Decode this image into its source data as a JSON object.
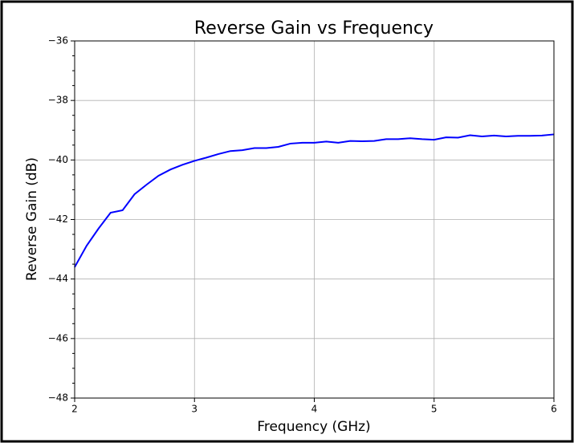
{
  "chart_data": {
    "type": "line",
    "title": "Reverse Gain vs Frequency",
    "x_label": "Frequency (GHz)",
    "y_label": "Reverse Gain (dB)",
    "x": [
      2.0,
      2.1,
      2.2,
      2.3,
      2.4,
      2.5,
      2.6,
      2.7,
      2.8,
      2.9,
      3.0,
      3.1,
      3.2,
      3.3,
      3.4,
      3.5,
      3.6,
      3.7,
      3.8,
      3.9,
      4.0,
      4.1,
      4.2,
      4.3,
      4.4,
      4.5,
      4.6,
      4.7,
      4.8,
      4.9,
      5.0,
      5.1,
      5.2,
      5.3,
      5.4,
      5.5,
      5.6,
      5.7,
      5.8,
      5.9,
      6.0
    ],
    "series": [
      {
        "color": "#0000ff",
        "values": [
          -43.6,
          -42.88,
          -42.3,
          -41.77,
          -41.69,
          -41.15,
          -40.83,
          -40.53,
          -40.32,
          -40.16,
          -40.03,
          -39.92,
          -39.8,
          -39.7,
          -39.67,
          -39.6,
          -39.6,
          -39.56,
          -39.45,
          -39.42,
          -39.42,
          -39.38,
          -39.42,
          -39.36,
          -39.37,
          -39.36,
          -39.3,
          -39.3,
          -39.27,
          -39.3,
          -39.32,
          -39.24,
          -39.25,
          -39.17,
          -39.21,
          -39.18,
          -39.21,
          -39.19,
          -39.19,
          -39.18,
          -39.14
        ]
      }
    ],
    "xlim": [
      2,
      6
    ],
    "xticks": [
      2,
      3,
      4,
      5,
      6
    ],
    "ylim": [
      -48,
      -36
    ],
    "yticks": [
      {
        "value": -48,
        "label": "−48"
      },
      {
        "value": -46,
        "label": "−46"
      },
      {
        "value": -44,
        "label": "−44"
      },
      {
        "value": -42,
        "label": "−42"
      },
      {
        "value": -40,
        "label": "−40"
      },
      {
        "value": -38,
        "label": "−38"
      },
      {
        "value": -36,
        "label": "−36"
      }
    ],
    "yticks_minor": [
      -47.5,
      -47,
      -46.5,
      -45.5,
      -45,
      -44.5,
      -43.5,
      -43,
      -42.5,
      -41.5,
      -41,
      -40.5,
      -39.5,
      -39,
      -38.5,
      -37.5,
      -37,
      -36.5
    ],
    "grid": true
  }
}
